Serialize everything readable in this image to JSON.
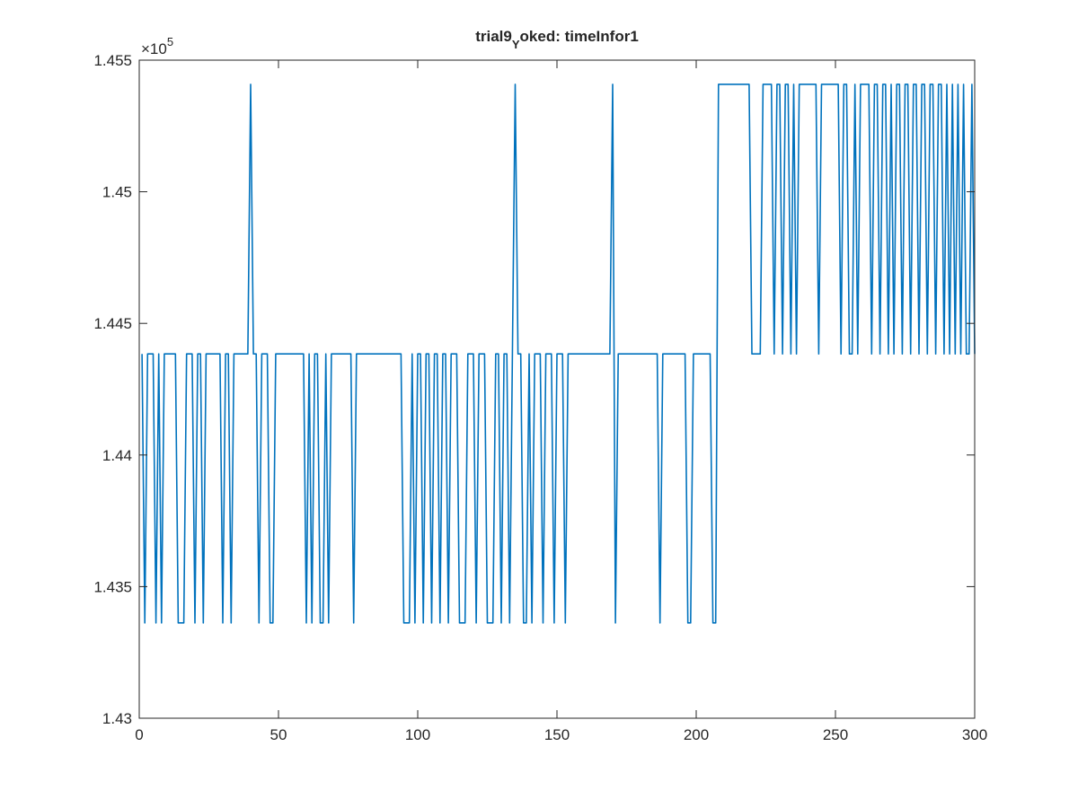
{
  "chart_data": {
    "type": "line",
    "title": [
      "trial9",
      "Y",
      "oked: timeInfor1"
    ],
    "y_multiplier": {
      "base": "×10",
      "exponent": "5"
    },
    "color": "#0072bd",
    "xlim": [
      0,
      300
    ],
    "xticks": [
      0,
      50,
      100,
      150,
      200,
      250,
      300
    ],
    "ylim": [
      143000,
      145500
    ],
    "yticks": [
      {
        "value": 143000,
        "label": "1.43"
      },
      {
        "value": 143500,
        "label": "1.435"
      },
      {
        "value": 144000,
        "label": "1.44"
      },
      {
        "value": 144500,
        "label": "1.445"
      },
      {
        "value": 145000,
        "label": "1.45"
      },
      {
        "value": 145500,
        "label": "1.455"
      }
    ],
    "x": [
      1,
      2,
      3,
      4,
      5,
      6,
      7,
      8,
      9,
      10,
      11,
      12,
      13,
      14,
      15,
      16,
      17,
      18,
      19,
      20,
      21,
      22,
      23,
      24,
      25,
      26,
      27,
      28,
      29,
      30,
      31,
      32,
      33,
      34,
      35,
      36,
      37,
      38,
      39,
      40,
      41,
      42,
      43,
      44,
      45,
      46,
      47,
      48,
      49,
      50,
      51,
      52,
      53,
      54,
      55,
      56,
      57,
      58,
      59,
      60,
      61,
      62,
      63,
      64,
      65,
      66,
      67,
      68,
      69,
      70,
      71,
      72,
      73,
      74,
      75,
      76,
      77,
      78,
      79,
      80,
      81,
      82,
      83,
      84,
      85,
      86,
      87,
      88,
      89,
      90,
      91,
      92,
      93,
      94,
      95,
      96,
      97,
      98,
      99,
      100,
      101,
      102,
      103,
      104,
      105,
      106,
      107,
      108,
      109,
      110,
      111,
      112,
      113,
      114,
      115,
      116,
      117,
      118,
      119,
      120,
      121,
      122,
      123,
      124,
      125,
      126,
      127,
      128,
      129,
      130,
      131,
      132,
      133,
      134,
      135,
      136,
      137,
      138,
      139,
      140,
      141,
      142,
      143,
      144,
      145,
      146,
      147,
      148,
      149,
      150,
      151,
      152,
      153,
      154,
      155,
      156,
      157,
      158,
      159,
      160,
      161,
      162,
      163,
      164,
      165,
      166,
      167,
      168,
      169,
      170,
      171,
      172,
      173,
      174,
      175,
      176,
      177,
      178,
      179,
      180,
      181,
      182,
      183,
      184,
      185,
      186,
      187,
      188,
      189,
      190,
      191,
      192,
      193,
      194,
      195,
      196,
      197,
      198,
      199,
      200,
      201,
      202,
      203,
      204,
      205,
      206,
      207,
      208,
      209,
      210,
      211,
      212,
      213,
      214,
      215,
      216,
      217,
      218,
      219,
      220,
      221,
      222,
      223,
      224,
      225,
      226,
      227,
      228,
      229,
      230,
      231,
      232,
      233,
      234,
      235,
      236,
      237,
      238,
      239,
      240,
      241,
      242,
      243,
      244,
      245,
      246,
      247,
      248,
      249,
      250,
      251,
      252,
      253,
      254,
      255,
      256,
      257,
      258,
      259,
      260,
      261,
      262,
      263,
      264,
      265,
      266,
      267,
      268,
      269,
      270,
      271,
      272,
      273,
      274,
      275,
      276,
      277,
      278,
      279,
      280,
      281,
      282,
      283,
      284,
      285,
      286,
      287,
      288,
      289,
      290,
      291,
      292,
      293,
      294,
      295,
      296,
      297,
      298,
      299,
      300
    ],
    "values": [
      144384,
      143362,
      144384,
      144384,
      144384,
      143362,
      144384,
      143362,
      144384,
      144384,
      144384,
      144384,
      144384,
      143362,
      143362,
      143362,
      144384,
      144384,
      144384,
      143362,
      144384,
      144384,
      143362,
      144384,
      144384,
      144384,
      144384,
      144384,
      144384,
      143362,
      144384,
      144384,
      143362,
      144384,
      144384,
      144384,
      144384,
      144384,
      144384,
      145408,
      144384,
      144384,
      143362,
      144384,
      144384,
      144384,
      143362,
      143362,
      144384,
      144384,
      144384,
      144384,
      144384,
      144384,
      144384,
      144384,
      144384,
      144384,
      144384,
      143362,
      144384,
      143362,
      144384,
      144384,
      143362,
      143362,
      144384,
      143362,
      144384,
      144384,
      144384,
      144384,
      144384,
      144384,
      144384,
      144384,
      143362,
      144384,
      144384,
      144384,
      144384,
      144384,
      144384,
      144384,
      144384,
      144384,
      144384,
      144384,
      144384,
      144384,
      144384,
      144384,
      144384,
      144384,
      143362,
      143362,
      143362,
      144384,
      143362,
      144384,
      144384,
      143362,
      144384,
      144384,
      143362,
      144384,
      144384,
      143362,
      144384,
      144384,
      143362,
      144384,
      144384,
      144384,
      143362,
      143362,
      143362,
      144384,
      144384,
      144384,
      143362,
      144384,
      144384,
      144384,
      143362,
      143362,
      143362,
      144384,
      144384,
      143362,
      144384,
      144384,
      143362,
      144384,
      145408,
      144384,
      144384,
      143362,
      143362,
      144384,
      143362,
      144384,
      144384,
      144384,
      143362,
      144384,
      144384,
      144384,
      143362,
      144384,
      144384,
      144384,
      143362,
      144384,
      144384,
      144384,
      144384,
      144384,
      144384,
      144384,
      144384,
      144384,
      144384,
      144384,
      144384,
      144384,
      144384,
      144384,
      144384,
      145408,
      143362,
      144384,
      144384,
      144384,
      144384,
      144384,
      144384,
      144384,
      144384,
      144384,
      144384,
      144384,
      144384,
      144384,
      144384,
      144384,
      143362,
      144384,
      144384,
      144384,
      144384,
      144384,
      144384,
      144384,
      144384,
      144384,
      143362,
      143362,
      144384,
      144384,
      144384,
      144384,
      144384,
      144384,
      144384,
      143362,
      143362,
      145408,
      145408,
      145408,
      145408,
      145408,
      145408,
      145408,
      145408,
      145408,
      145408,
      145408,
      145408,
      144384,
      144384,
      144384,
      144384,
      145408,
      145408,
      145408,
      145408,
      144384,
      145408,
      145408,
      144384,
      145408,
      145408,
      144384,
      145408,
      144384,
      145408,
      145408,
      145408,
      145408,
      145408,
      145408,
      145408,
      144384,
      145408,
      145408,
      145408,
      145408,
      145408,
      145408,
      145408,
      144384,
      145408,
      145408,
      144384,
      144384,
      145408,
      144384,
      145408,
      145408,
      145408,
      145408,
      144384,
      145408,
      145408,
      144384,
      145408,
      145408,
      144384,
      145408,
      144384,
      145408,
      145408,
      144384,
      145408,
      145408,
      144384,
      145408,
      145408,
      144384,
      145408,
      145408,
      144384,
      145408,
      145408,
      144384,
      145408,
      145408,
      144384,
      145408,
      144384,
      145408,
      144384,
      145408,
      144384,
      145408,
      144384,
      144384,
      145408,
      144384
    ]
  }
}
